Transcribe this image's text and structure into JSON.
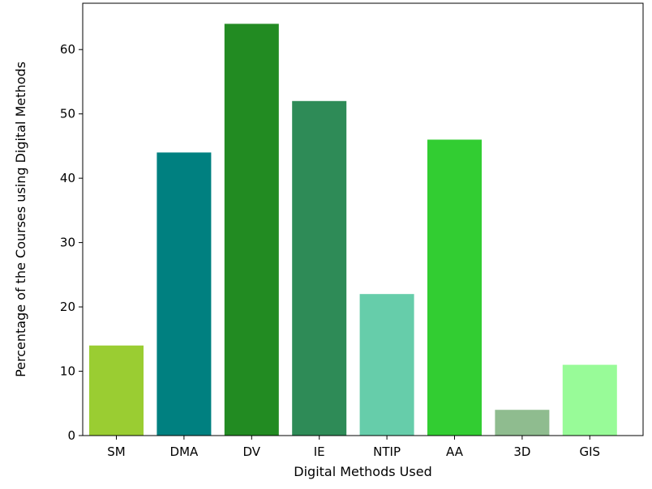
{
  "chart_data": {
    "type": "bar",
    "title": "",
    "xlabel": "Digital Methods Used",
    "ylabel": "Percentage of the Courses using Digital Methods",
    "categories": [
      "SM",
      "DMA",
      "DV",
      "IE",
      "NTIP",
      "AA",
      "3D",
      "GIS"
    ],
    "values": [
      14,
      44,
      64,
      52,
      22,
      46,
      4,
      11
    ],
    "colors": [
      "#9acd32",
      "#008080",
      "#228b22",
      "#2e8b57",
      "#66cdaa",
      "#32cd32",
      "#8fbc8f",
      "#98fb98"
    ],
    "yticks": [
      0,
      10,
      20,
      30,
      40,
      50,
      60
    ],
    "ylim": [
      0,
      67.2
    ],
    "grid": false,
    "legend": "none"
  }
}
